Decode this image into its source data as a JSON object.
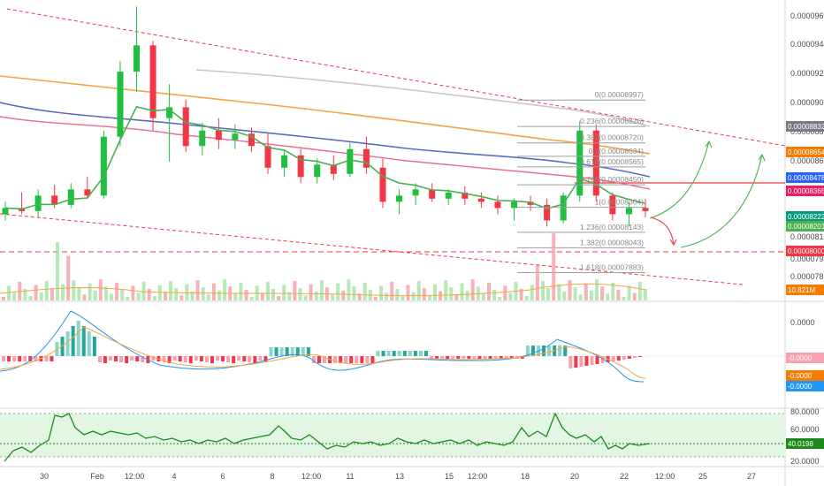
{
  "chart_data": [
    {
      "type": "candlestick",
      "panel": "price",
      "y_ticks": [
        "0.00009600",
        "0.00009400",
        "0.00009200",
        "0.00009000",
        "0.00008800",
        "0.00008600",
        "0.00008100",
        "0.00007950",
        "0.00007830"
      ],
      "ylim": [
        7.76e-05,
        9.62e-05
      ],
      "x_ticks": [
        "30",
        "Feb",
        "12:00",
        "4",
        "6",
        "8",
        "12:00",
        "11",
        "13",
        "15",
        "12:00",
        "18",
        "20",
        "22",
        "12:00",
        "25",
        "27"
      ],
      "candles": [
        {
          "o": 8.26e-05,
          "h": 8.34e-05,
          "l": 8.22e-05,
          "c": 8.3e-05
        },
        {
          "o": 8.3e-05,
          "h": 8.4e-05,
          "l": 8.26e-05,
          "c": 8.28e-05
        },
        {
          "o": 8.28e-05,
          "h": 8.42e-05,
          "l": 8.24e-05,
          "c": 8.38e-05
        },
        {
          "o": 8.38e-05,
          "h": 8.45e-05,
          "l": 8.3e-05,
          "c": 8.32e-05
        },
        {
          "o": 8.32e-05,
          "h": 8.46e-05,
          "l": 8.3e-05,
          "c": 8.42e-05
        },
        {
          "o": 8.42e-05,
          "h": 8.5e-05,
          "l": 8.36e-05,
          "c": 8.38e-05
        },
        {
          "o": 8.38e-05,
          "h": 8.8e-05,
          "l": 8.36e-05,
          "c": 8.76e-05
        },
        {
          "o": 8.76e-05,
          "h": 9.25e-05,
          "l": 8.7e-05,
          "c": 9.18e-05
        },
        {
          "o": 9.18e-05,
          "h": 9.6e-05,
          "l": 9.05e-05,
          "c": 9.35e-05
        },
        {
          "o": 9.35e-05,
          "h": 9.38e-05,
          "l": 8.8e-05,
          "c": 8.88e-05
        },
        {
          "o": 8.88e-05,
          "h": 9.1e-05,
          "l": 8.6e-05,
          "c": 8.95e-05
        },
        {
          "o": 8.95e-05,
          "h": 9e-05,
          "l": 8.66e-05,
          "c": 8.7e-05
        },
        {
          "o": 8.7e-05,
          "h": 8.85e-05,
          "l": 8.64e-05,
          "c": 8.8e-05
        },
        {
          "o": 8.8e-05,
          "h": 8.88e-05,
          "l": 8.68e-05,
          "c": 8.74e-05
        },
        {
          "o": 8.74e-05,
          "h": 8.84e-05,
          "l": 8.68e-05,
          "c": 8.78e-05
        },
        {
          "o": 8.78e-05,
          "h": 8.82e-05,
          "l": 8.66e-05,
          "c": 8.7e-05
        },
        {
          "o": 8.7e-05,
          "h": 8.78e-05,
          "l": 8.52e-05,
          "c": 8.56e-05
        },
        {
          "o": 8.56e-05,
          "h": 8.68e-05,
          "l": 8.5e-05,
          "c": 8.64e-05
        },
        {
          "o": 8.64e-05,
          "h": 8.68e-05,
          "l": 8.46e-05,
          "c": 8.5e-05
        },
        {
          "o": 8.5e-05,
          "h": 8.62e-05,
          "l": 8.46e-05,
          "c": 8.58e-05
        },
        {
          "o": 8.58e-05,
          "h": 8.64e-05,
          "l": 8.48e-05,
          "c": 8.52e-05
        },
        {
          "o": 8.52e-05,
          "h": 8.72e-05,
          "l": 8.5e-05,
          "c": 8.68e-05
        },
        {
          "o": 8.68e-05,
          "h": 8.76e-05,
          "l": 8.52e-05,
          "c": 8.56e-05
        },
        {
          "o": 8.56e-05,
          "h": 8.62e-05,
          "l": 8.3e-05,
          "c": 8.34e-05
        },
        {
          "o": 8.34e-05,
          "h": 8.42e-05,
          "l": 8.26e-05,
          "c": 8.38e-05
        },
        {
          "o": 8.38e-05,
          "h": 8.46e-05,
          "l": 8.32e-05,
          "c": 8.42e-05
        },
        {
          "o": 8.42e-05,
          "h": 8.46e-05,
          "l": 8.34e-05,
          "c": 8.36e-05
        },
        {
          "o": 8.36e-05,
          "h": 8.42e-05,
          "l": 8.32e-05,
          "c": 8.4e-05
        },
        {
          "o": 8.4e-05,
          "h": 8.44e-05,
          "l": 8.32e-05,
          "c": 8.36e-05
        },
        {
          "o": 8.36e-05,
          "h": 8.4e-05,
          "l": 8.3e-05,
          "c": 8.34e-05
        },
        {
          "o": 8.34e-05,
          "h": 8.38e-05,
          "l": 8.26e-05,
          "c": 8.3e-05
        },
        {
          "o": 8.3e-05,
          "h": 8.36e-05,
          "l": 8.22e-05,
          "c": 8.34e-05
        },
        {
          "o": 8.34e-05,
          "h": 8.38e-05,
          "l": 8.28e-05,
          "c": 8.32e-05
        },
        {
          "o": 8.32e-05,
          "h": 8.36e-05,
          "l": 8.18e-05,
          "c": 8.22e-05
        },
        {
          "o": 8.22e-05,
          "h": 8.4e-05,
          "l": 8.2e-05,
          "c": 8.38e-05
        },
        {
          "o": 8.38e-05,
          "h": 8.86e-05,
          "l": 8.34e-05,
          "c": 8.8e-05
        },
        {
          "o": 8.8e-05,
          "h": 8.84e-05,
          "l": 8.34e-05,
          "c": 8.38e-05
        },
        {
          "o": 8.38e-05,
          "h": 8.4e-05,
          "l": 8.22e-05,
          "c": 8.26e-05
        },
        {
          "o": 8.26e-05,
          "h": 8.34e-05,
          "l": 8.18e-05,
          "c": 8.3e-05
        },
        {
          "o": 8.3e-05,
          "h": 8.36e-05,
          "l": 8.24e-05,
          "c": 8.28e-05
        }
      ],
      "fib_levels": [
        {
          "ratio": "0",
          "value": "0.00008997"
        },
        {
          "ratio": "0.236",
          "value": "0.00008826"
        },
        {
          "ratio": "0.382",
          "value": "0.00008720"
        },
        {
          "ratio": "0.5",
          "value": "0.00008634"
        },
        {
          "ratio": "0.618",
          "value": "0.00008565"
        },
        {
          "ratio": "0.786",
          "value": "0.00008450"
        },
        {
          "ratio": "1",
          "value": "0.00008304"
        },
        {
          "ratio": "1.236",
          "value": "0.00008143"
        },
        {
          "ratio": "1.382",
          "value": "0.00008043"
        },
        {
          "ratio": "1.618",
          "value": "0.00007883"
        }
      ],
      "price_tags": [
        {
          "text": "0.00008832",
          "color": "#787b86"
        },
        {
          "text": "0.00008654",
          "color": "#f57c00"
        },
        {
          "text": "0.00008478",
          "color": "#2962ff"
        },
        {
          "text": "0.00008365",
          "color": "#e91e63"
        },
        {
          "text": "0.00008222",
          "color": "#089981"
        },
        {
          "text": "0.00008201",
          "color": "#4caf50"
        },
        {
          "text": "0.00008000",
          "color": "#f23645"
        },
        {
          "text": "10.821M",
          "color": "#f57c00"
        }
      ],
      "colors": {
        "up": "#26a69a",
        "down": "#f23645",
        "ema": "#4caf50",
        "ma1": "#ec407a",
        "ma2": "#5c6bc0",
        "ma3": "#ff9800",
        "ma4": "#bdbdbd"
      }
    },
    {
      "type": "histogram",
      "panel": "macd",
      "y_ticks": [
        "0.0000"
      ],
      "value_tags": [
        {
          "text": "-0.0000",
          "color": "#f7a1b0"
        },
        {
          "text": "-0.0000",
          "color": "#f57c00"
        },
        {
          "text": "-0.0000",
          "color": "#2196f3"
        }
      ]
    },
    {
      "type": "line",
      "panel": "rsi",
      "y_ticks": [
        "80.0000",
        "60.0000",
        "20.0000"
      ],
      "current": "40.0198",
      "band": [
        30,
        70
      ],
      "colors": {
        "line": "#1b8a1b",
        "band": "#e6f7e6"
      }
    }
  ]
}
